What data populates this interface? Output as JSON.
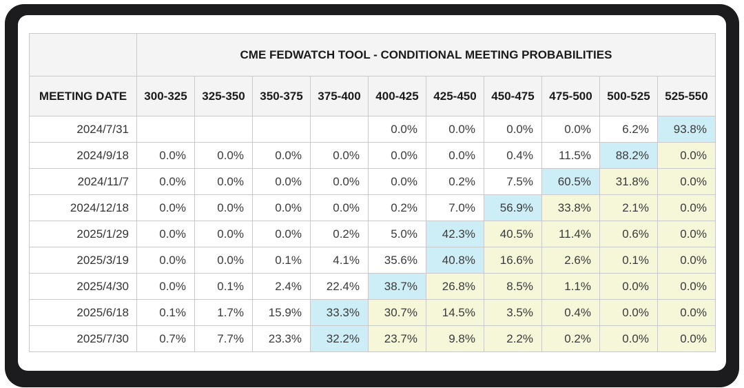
{
  "frame": {
    "frame_color": "#1c1c1e",
    "page_background": "#ffffff"
  },
  "table": {
    "title": "CME FEDWATCH TOOL - CONDITIONAL MEETING PROBABILITIES",
    "meeting_date_label": "MEETING DATE",
    "columns": [
      "300-325",
      "325-350",
      "350-375",
      "375-400",
      "400-425",
      "425-450",
      "450-475",
      "475-500",
      "500-525",
      "525-550"
    ],
    "highlight_colors": {
      "modal_cell": "#cdeef6",
      "right_of_modal_cell": "#f6f6d8",
      "header_background": "#f4f4f4",
      "grid_border": "#c9c9c9"
    },
    "rows": [
      {
        "date": "2024/7/31",
        "values": [
          "",
          "",
          "",
          "",
          "0.0%",
          "0.0%",
          "0.0%",
          "0.0%",
          "6.2%",
          "93.8%"
        ],
        "highlights": [
          "none",
          "none",
          "none",
          "none",
          "none",
          "none",
          "none",
          "none",
          "none",
          "cyan"
        ]
      },
      {
        "date": "2024/9/18",
        "values": [
          "0.0%",
          "0.0%",
          "0.0%",
          "0.0%",
          "0.0%",
          "0.0%",
          "0.4%",
          "11.5%",
          "88.2%",
          "0.0%"
        ],
        "highlights": [
          "none",
          "none",
          "none",
          "none",
          "none",
          "none",
          "none",
          "none",
          "cyan",
          "yellow"
        ]
      },
      {
        "date": "2024/11/7",
        "values": [
          "0.0%",
          "0.0%",
          "0.0%",
          "0.0%",
          "0.0%",
          "0.2%",
          "7.5%",
          "60.5%",
          "31.8%",
          "0.0%"
        ],
        "highlights": [
          "none",
          "none",
          "none",
          "none",
          "none",
          "none",
          "none",
          "cyan",
          "yellow",
          "yellow"
        ]
      },
      {
        "date": "2024/12/18",
        "values": [
          "0.0%",
          "0.0%",
          "0.0%",
          "0.0%",
          "0.2%",
          "7.0%",
          "56.9%",
          "33.8%",
          "2.1%",
          "0.0%"
        ],
        "highlights": [
          "none",
          "none",
          "none",
          "none",
          "none",
          "none",
          "cyan",
          "yellow",
          "yellow",
          "yellow"
        ]
      },
      {
        "date": "2025/1/29",
        "values": [
          "0.0%",
          "0.0%",
          "0.0%",
          "0.2%",
          "5.0%",
          "42.3%",
          "40.5%",
          "11.4%",
          "0.6%",
          "0.0%"
        ],
        "highlights": [
          "none",
          "none",
          "none",
          "none",
          "none",
          "cyan",
          "yellow",
          "yellow",
          "yellow",
          "yellow"
        ]
      },
      {
        "date": "2025/3/19",
        "values": [
          "0.0%",
          "0.0%",
          "0.1%",
          "4.1%",
          "35.6%",
          "40.8%",
          "16.6%",
          "2.6%",
          "0.1%",
          "0.0%"
        ],
        "highlights": [
          "none",
          "none",
          "none",
          "none",
          "none",
          "cyan",
          "yellow",
          "yellow",
          "yellow",
          "yellow"
        ]
      },
      {
        "date": "2025/4/30",
        "values": [
          "0.0%",
          "0.1%",
          "2.4%",
          "22.4%",
          "38.7%",
          "26.8%",
          "8.5%",
          "1.1%",
          "0.0%",
          "0.0%"
        ],
        "highlights": [
          "none",
          "none",
          "none",
          "none",
          "cyan",
          "yellow",
          "yellow",
          "yellow",
          "yellow",
          "yellow"
        ]
      },
      {
        "date": "2025/6/18",
        "values": [
          "0.1%",
          "1.7%",
          "15.9%",
          "33.3%",
          "30.7%",
          "14.5%",
          "3.5%",
          "0.4%",
          "0.0%",
          "0.0%"
        ],
        "highlights": [
          "none",
          "none",
          "none",
          "cyan",
          "yellow",
          "yellow",
          "yellow",
          "yellow",
          "yellow",
          "yellow"
        ]
      },
      {
        "date": "2025/7/30",
        "values": [
          "0.7%",
          "7.7%",
          "23.3%",
          "32.2%",
          "23.7%",
          "9.8%",
          "2.2%",
          "0.2%",
          "0.0%",
          "0.0%"
        ],
        "highlights": [
          "none",
          "none",
          "none",
          "cyan",
          "yellow",
          "yellow",
          "yellow",
          "yellow",
          "yellow",
          "yellow"
        ]
      }
    ]
  }
}
